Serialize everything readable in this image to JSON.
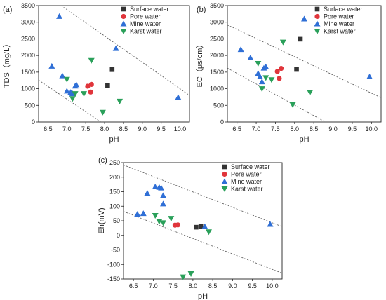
{
  "chart_data": [
    {
      "type": "scatter",
      "panel_label": "(a)",
      "xlabel": "pH",
      "ylabel": "TDS（mg/L）",
      "xlim": [
        6.25,
        10.25
      ],
      "ylim": [
        0,
        3500
      ],
      "xticks": [
        "6.5",
        "7.0",
        "7.5",
        "8.0",
        "8.5",
        "9.0",
        "9.5",
        "10.0"
      ],
      "xtick_values": [
        6.5,
        7.0,
        7.5,
        8.0,
        8.5,
        9.0,
        9.5,
        10.0
      ],
      "yticks": [
        "0",
        "500",
        "1000",
        "1500",
        "2000",
        "2500",
        "3000",
        "3500"
      ],
      "ytick_values": [
        0,
        500,
        1000,
        1500,
        2000,
        2500,
        3000,
        3500
      ],
      "legend_position": "top-right",
      "series": [
        {
          "name": "Surface water",
          "marker": "square",
          "color": "#333333",
          "x": [
            8.2,
            8.08
          ],
          "y": [
            1575,
            1100
          ]
        },
        {
          "name": "Pore water",
          "marker": "circle",
          "color": "#e0353b",
          "x": [
            7.55,
            7.65,
            7.63
          ],
          "y": [
            1075,
            1130,
            900
          ]
        },
        {
          "name": "Mine water",
          "marker": "triangle-up",
          "color": "#2f6fd6",
          "x": [
            6.8,
            6.6,
            6.88,
            7.0,
            7.1,
            7.15,
            7.22,
            7.25,
            8.3,
            9.95
          ],
          "y": [
            3175,
            1680,
            1390,
            930,
            890,
            850,
            1080,
            1120,
            2210,
            740
          ]
        },
        {
          "name": "Karst water",
          "marker": "triangle-down",
          "color": "#2aa05a",
          "x": [
            7.0,
            7.15,
            7.22,
            7.45,
            7.65,
            7.95,
            8.4
          ],
          "y": [
            1280,
            700,
            850,
            850,
            1850,
            290,
            625
          ]
        }
      ],
      "guide_lines": [
        {
          "from": [
            6.85,
            3500
          ],
          "to": [
            10.25,
            800
          ]
        },
        {
          "from": [
            6.25,
            1260
          ],
          "to": [
            7.9,
            0
          ]
        }
      ]
    },
    {
      "type": "scatter",
      "panel_label": "(b)",
      "xlabel": "pH",
      "ylabel": "EC（μs/cm）",
      "xlim": [
        6.25,
        10.25
      ],
      "ylim": [
        0,
        3500
      ],
      "xticks": [
        "6.5",
        "7.0",
        "7.5",
        "8.0",
        "8.5",
        "9.0",
        "9.5",
        "10.0"
      ],
      "xtick_values": [
        6.5,
        7.0,
        7.5,
        8.0,
        8.5,
        9.0,
        9.5,
        10.0
      ],
      "yticks": [
        "0",
        "500",
        "1000",
        "1500",
        "2000",
        "2500",
        "3000",
        "3500"
      ],
      "ytick_values": [
        0,
        500,
        1000,
        1500,
        2000,
        2500,
        3000,
        3500
      ],
      "legend_position": "top-right",
      "series": [
        {
          "name": "Surface water",
          "marker": "square",
          "color": "#333333",
          "x": [
            8.15,
            8.05
          ],
          "y": [
            2490,
            1580
          ]
        },
        {
          "name": "Pore water",
          "marker": "circle",
          "color": "#e0353b",
          "x": [
            7.55,
            7.65,
            7.6
          ],
          "y": [
            1520,
            1610,
            1310
          ]
        },
        {
          "name": "Mine water",
          "marker": "triangle-up",
          "color": "#2f6fd6",
          "x": [
            6.6,
            6.85,
            7.1,
            7.05,
            7.2,
            7.25,
            7.15,
            8.25,
            9.95
          ],
          "y": [
            2180,
            1930,
            1360,
            1460,
            1620,
            1660,
            1210,
            3100,
            1360
          ]
        },
        {
          "name": "Karst water",
          "marker": "triangle-down",
          "color": "#2aa05a",
          "x": [
            7.05,
            7.15,
            7.25,
            7.4,
            7.7,
            7.95,
            8.4
          ],
          "y": [
            1760,
            1000,
            1330,
            1270,
            2400,
            520,
            890
          ]
        }
      ],
      "guide_lines": [
        {
          "from": [
            6.25,
            2920
          ],
          "to": [
            10.25,
            730
          ]
        },
        {
          "from": [
            6.25,
            1620
          ],
          "to": [
            8.8,
            0
          ]
        }
      ]
    },
    {
      "type": "scatter",
      "panel_label": "(c)",
      "xlabel": "pH",
      "ylabel": "Eh(mV)",
      "xlim": [
        6.25,
        10.25
      ],
      "ylim": [
        -150,
        250
      ],
      "xticks": [
        "6.5",
        "7.0",
        "7.5",
        "8.0",
        "8.5",
        "9.0",
        "9.5",
        "10.0"
      ],
      "xtick_values": [
        6.5,
        7.0,
        7.5,
        8.0,
        8.5,
        9.0,
        9.5,
        10.0
      ],
      "yticks": [
        "-150",
        "-100",
        "-50",
        "0",
        "50",
        "100",
        "150",
        "200",
        "250"
      ],
      "ytick_values": [
        -150,
        -100,
        -50,
        0,
        50,
        100,
        150,
        200,
        250
      ],
      "legend_position": "top-right",
      "series": [
        {
          "name": "Surface water",
          "marker": "square",
          "color": "#333333",
          "x": [
            8.08,
            8.2
          ],
          "y": [
            28,
            30
          ]
        },
        {
          "name": "Pore water",
          "marker": "circle",
          "color": "#e0353b",
          "x": [
            7.55,
            7.62
          ],
          "y": [
            35,
            36
          ]
        },
        {
          "name": "Mine water",
          "marker": "triangle-up",
          "color": "#2f6fd6",
          "x": [
            6.6,
            6.75,
            6.85,
            7.05,
            7.15,
            7.2,
            7.25,
            7.25,
            8.3,
            9.95
          ],
          "y": [
            73,
            75,
            145,
            167,
            165,
            163,
            137,
            108,
            30,
            38
          ]
        },
        {
          "name": "Karst water",
          "marker": "triangle-down",
          "color": "#2aa05a",
          "x": [
            7.05,
            7.15,
            7.25,
            7.45,
            7.75,
            7.95,
            8.4
          ],
          "y": [
            68,
            48,
            43,
            58,
            -143,
            -132,
            12
          ]
        }
      ],
      "guide_lines": [
        {
          "from": [
            6.25,
            242
          ],
          "to": [
            10.25,
            30
          ]
        },
        {
          "from": [
            6.25,
            82
          ],
          "to": [
            10.25,
            -130
          ]
        }
      ]
    }
  ]
}
